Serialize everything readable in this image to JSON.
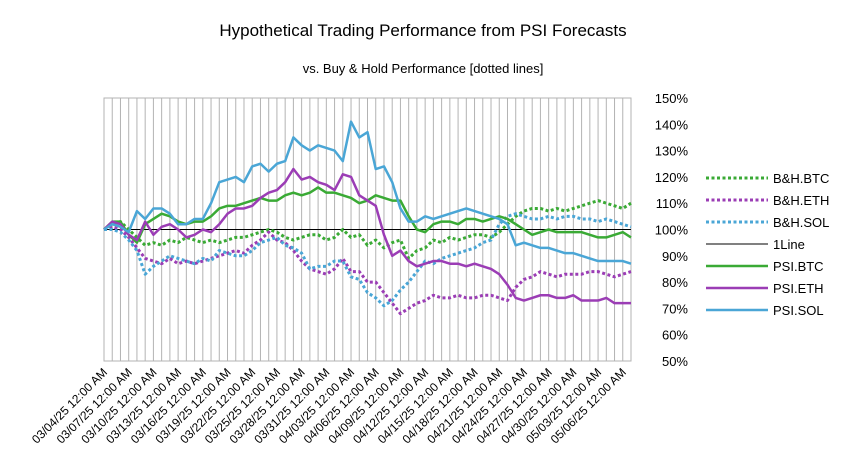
{
  "chart_data": {
    "type": "line",
    "title": "Hypothetical Trading Performance from PSI Forecasts",
    "subtitle": "vs. Buy & Hold Performance [dotted lines]",
    "xlabel": "",
    "ylabel": "",
    "ylim": [
      0.5,
      1.5
    ],
    "y_tick_values": [
      0.5,
      0.6,
      0.7,
      0.8,
      0.9,
      1.0,
      1.1,
      1.2,
      1.3,
      1.4,
      1.5
    ],
    "y_tick_labels": [
      "50%",
      "60%",
      "70%",
      "80%",
      "90%",
      "100%",
      "110%",
      "120%",
      "130%",
      "140%",
      "150%"
    ],
    "x_tick_labels": [
      "03/04/25 12:00 AM",
      "03/07/25 12:00 AM",
      "03/10/25 12:00 AM",
      "03/13/25 12:00 AM",
      "03/16/25 12:00 AM",
      "03/19/25 12:00 AM",
      "03/22/25 12:00 AM",
      "03/25/25 12:00 AM",
      "03/28/25 12:00 AM",
      "03/31/25 12:00 AM",
      "04/03/25 12:00 AM",
      "04/06/25 12:00 AM",
      "04/09/25 12:00 AM",
      "04/12/25 12:00 AM",
      "04/15/25 12:00 AM",
      "04/18/25 12:00 AM",
      "04/21/25 12:00 AM",
      "04/24/25 12:00 AM",
      "04/27/25 12:00 AM",
      "04/30/25 12:00 AM",
      "05/03/25 12:00 AM",
      "05/06/25 12:00 AM"
    ],
    "grid": "vertical",
    "legend": "right",
    "series": [
      {
        "name": "B&H.BTC",
        "color": "#3aaa35",
        "dash": "dotted",
        "width": 3,
        "values": [
          1.0,
          1.02,
          1.03,
          1.0,
          0.97,
          0.94,
          0.95,
          0.94,
          0.96,
          0.95,
          0.97,
          0.96,
          0.95,
          0.96,
          0.95,
          0.96,
          0.97,
          0.97,
          0.98,
          0.99,
          1.0,
          0.99,
          0.97,
          0.96,
          0.97,
          0.98,
          0.98,
          0.96,
          0.97,
          1.0,
          0.97,
          0.98,
          0.94,
          0.96,
          0.93,
          0.95,
          0.96,
          0.89,
          0.92,
          0.93,
          0.96,
          0.95,
          0.97,
          0.96,
          0.97,
          0.98,
          0.98,
          0.97,
          0.99,
          1.02,
          1.05,
          1.07,
          1.08,
          1.08,
          1.07,
          1.08,
          1.07,
          1.08,
          1.09,
          1.1,
          1.11,
          1.1,
          1.09,
          1.08,
          1.1
        ]
      },
      {
        "name": "B&H.ETH",
        "color": "#9b3db5",
        "dash": "dotted",
        "width": 3,
        "values": [
          1.0,
          1.01,
          1.0,
          0.97,
          0.93,
          0.89,
          0.88,
          0.87,
          0.89,
          0.87,
          0.88,
          0.87,
          0.88,
          0.89,
          0.9,
          0.91,
          0.92,
          0.91,
          0.94,
          0.96,
          0.99,
          0.96,
          0.95,
          0.92,
          0.88,
          0.85,
          0.84,
          0.83,
          0.85,
          0.89,
          0.84,
          0.84,
          0.8,
          0.8,
          0.76,
          0.72,
          0.68,
          0.7,
          0.72,
          0.73,
          0.75,
          0.74,
          0.74,
          0.75,
          0.74,
          0.74,
          0.75,
          0.75,
          0.74,
          0.73,
          0.78,
          0.81,
          0.82,
          0.84,
          0.83,
          0.82,
          0.83,
          0.83,
          0.83,
          0.84,
          0.84,
          0.83,
          0.82,
          0.83,
          0.84
        ]
      },
      {
        "name": "B&H.SOL",
        "color": "#4aa6d6",
        "dash": "dotted",
        "width": 3,
        "values": [
          1.0,
          1.0,
          0.99,
          0.96,
          0.92,
          0.83,
          0.86,
          0.88,
          0.9,
          0.89,
          0.88,
          0.87,
          0.89,
          0.88,
          0.92,
          0.91,
          0.9,
          0.9,
          0.92,
          0.95,
          0.96,
          0.97,
          0.94,
          0.93,
          0.91,
          0.85,
          0.86,
          0.86,
          0.88,
          0.88,
          0.82,
          0.81,
          0.76,
          0.74,
          0.71,
          0.73,
          0.77,
          0.8,
          0.84,
          0.88,
          0.87,
          0.89,
          0.9,
          0.91,
          0.92,
          0.93,
          0.95,
          0.96,
          1.02,
          1.05,
          1.06,
          1.05,
          1.04,
          1.04,
          1.05,
          1.04,
          1.05,
          1.05,
          1.04,
          1.04,
          1.03,
          1.04,
          1.03,
          1.02,
          1.01
        ]
      },
      {
        "name": "1Line",
        "color": "#000000",
        "dash": "solid",
        "width": 1,
        "values": [
          1.0,
          1.0,
          1.0,
          1.0,
          1.0,
          1.0,
          1.0,
          1.0,
          1.0,
          1.0,
          1.0,
          1.0,
          1.0,
          1.0,
          1.0,
          1.0,
          1.0,
          1.0,
          1.0,
          1.0,
          1.0,
          1.0,
          1.0,
          1.0,
          1.0,
          1.0,
          1.0,
          1.0,
          1.0,
          1.0,
          1.0,
          1.0,
          1.0,
          1.0,
          1.0,
          1.0,
          1.0,
          1.0,
          1.0,
          1.0,
          1.0,
          1.0,
          1.0,
          1.0,
          1.0,
          1.0,
          1.0,
          1.0,
          1.0,
          1.0,
          1.0,
          1.0,
          1.0,
          1.0,
          1.0,
          1.0,
          1.0,
          1.0,
          1.0,
          1.0,
          1.0,
          1.0,
          1.0,
          1.0,
          1.0
        ]
      },
      {
        "name": "PSI.BTC",
        "color": "#3aaa35",
        "dash": "solid",
        "width": 2.5,
        "values": [
          1.0,
          1.03,
          1.03,
          0.98,
          0.95,
          1.02,
          1.04,
          1.06,
          1.05,
          1.03,
          1.02,
          1.03,
          1.03,
          1.05,
          1.08,
          1.09,
          1.09,
          1.1,
          1.11,
          1.12,
          1.11,
          1.11,
          1.13,
          1.14,
          1.13,
          1.14,
          1.16,
          1.14,
          1.14,
          1.13,
          1.12,
          1.1,
          1.11,
          1.13,
          1.12,
          1.11,
          1.11,
          1.05,
          1.0,
          0.99,
          1.02,
          1.03,
          1.03,
          1.02,
          1.04,
          1.04,
          1.03,
          1.04,
          1.05,
          1.04,
          1.02,
          1.0,
          0.98,
          0.99,
          1.0,
          0.99,
          0.99,
          0.99,
          0.99,
          0.98,
          0.97,
          0.97,
          0.98,
          0.99,
          0.97
        ]
      },
      {
        "name": "PSI.ETH",
        "color": "#9b3db5",
        "dash": "solid",
        "width": 2.5,
        "values": [
          1.0,
          1.03,
          1.02,
          0.98,
          0.96,
          1.03,
          0.98,
          1.01,
          1.02,
          1.0,
          0.97,
          0.98,
          1.0,
          0.99,
          1.02,
          1.06,
          1.08,
          1.08,
          1.09,
          1.12,
          1.14,
          1.15,
          1.18,
          1.23,
          1.19,
          1.2,
          1.18,
          1.17,
          1.15,
          1.21,
          1.2,
          1.13,
          1.11,
          1.09,
          0.98,
          0.9,
          0.92,
          0.88,
          0.86,
          0.87,
          0.88,
          0.88,
          0.87,
          0.87,
          0.86,
          0.87,
          0.86,
          0.85,
          0.83,
          0.79,
          0.74,
          0.73,
          0.74,
          0.75,
          0.75,
          0.74,
          0.74,
          0.75,
          0.73,
          0.73,
          0.73,
          0.74,
          0.72,
          0.72,
          0.72
        ]
      },
      {
        "name": "PSI.SOL",
        "color": "#4aa6d6",
        "dash": "solid",
        "width": 2.5,
        "values": [
          1.0,
          1.02,
          1.01,
          0.99,
          1.07,
          1.04,
          1.08,
          1.08,
          1.06,
          1.02,
          1.02,
          1.04,
          1.04,
          1.1,
          1.18,
          1.19,
          1.2,
          1.18,
          1.24,
          1.25,
          1.22,
          1.25,
          1.26,
          1.35,
          1.32,
          1.3,
          1.32,
          1.31,
          1.3,
          1.26,
          1.41,
          1.35,
          1.37,
          1.23,
          1.24,
          1.18,
          1.08,
          1.03,
          1.03,
          1.05,
          1.04,
          1.05,
          1.06,
          1.07,
          1.08,
          1.07,
          1.06,
          1.05,
          1.04,
          1.02,
          0.94,
          0.95,
          0.94,
          0.93,
          0.93,
          0.92,
          0.91,
          0.91,
          0.9,
          0.89,
          0.88,
          0.88,
          0.88,
          0.88,
          0.87
        ]
      }
    ]
  }
}
